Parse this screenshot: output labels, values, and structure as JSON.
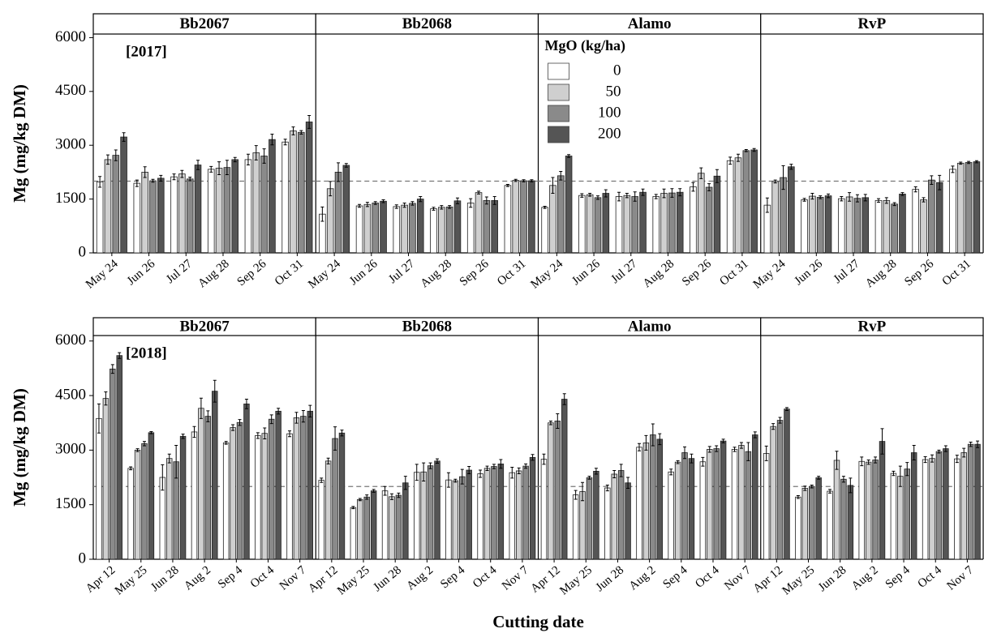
{
  "chart_data": [
    {
      "type": "bar",
      "annotation": "[2017]",
      "ylabel": "Mg (mg/kg DM)",
      "ylim": [
        0,
        6100
      ],
      "yticks": [
        0,
        1500,
        3000,
        4500,
        6000
      ],
      "hline": 2000,
      "categories": [
        "May 24",
        "Jun 26",
        "Jul 27",
        "Aug 28",
        "Sep 26",
        "Oct 31"
      ],
      "colors": [
        "#ffffff",
        "#cfcfcf",
        "#8a8a8a",
        "#555555"
      ],
      "legend": {
        "title": "MgO (kg/ha)",
        "names": [
          "0",
          "50",
          "100",
          "200"
        ]
      },
      "panels": [
        {
          "title": "Bb2067",
          "values": [
            [
              1980,
              1940,
              2120,
              2330,
              2600,
              3090
            ],
            [
              2600,
              2250,
              2200,
              2360,
              2790,
              3400
            ],
            [
              2720,
              2010,
              2060,
              2380,
              2700,
              3360
            ],
            [
              3230,
              2080,
              2450,
              2600,
              3160,
              3650
            ]
          ],
          "errors": [
            [
              150,
              90,
              80,
              80,
              150,
              80
            ],
            [
              130,
              150,
              100,
              180,
              200,
              110
            ],
            [
              150,
              40,
              50,
              200,
              200,
              50
            ],
            [
              120,
              80,
              130,
              60,
              150,
              180
            ]
          ]
        },
        {
          "title": "Bb2068",
          "values": [
            [
              1080,
              1310,
              1290,
              1230,
              1390,
              1880
            ],
            [
              1790,
              1350,
              1330,
              1270,
              1680,
              2020
            ],
            [
              2250,
              1390,
              1380,
              1280,
              1460,
              2010
            ],
            [
              2440,
              1440,
              1500,
              1450,
              1460,
              2010
            ]
          ],
          "errors": [
            [
              200,
              40,
              50,
              40,
              120,
              30
            ],
            [
              200,
              60,
              60,
              50,
              40,
              30
            ],
            [
              260,
              40,
              50,
              40,
              100,
              30
            ],
            [
              50,
              40,
              70,
              80,
              110,
              30
            ]
          ]
        },
        {
          "title": "Alamo",
          "values": [
            [
              1270,
              1600,
              1570,
              1570,
              1840,
              2570
            ],
            [
              1880,
              1620,
              1600,
              1660,
              2220,
              2650
            ],
            [
              2150,
              1540,
              1570,
              1670,
              1830,
              2850
            ],
            [
              2700,
              1660,
              1690,
              1690,
              2140,
              2870
            ]
          ],
          "errors": [
            [
              30,
              50,
              120,
              60,
              120,
              100
            ],
            [
              220,
              40,
              60,
              120,
              150,
              100
            ],
            [
              120,
              50,
              130,
              120,
              100,
              30
            ],
            [
              40,
              100,
              90,
              100,
              180,
              40
            ]
          ]
        },
        {
          "title": "RvP",
          "values": [
            [
              1330,
              1480,
              1510,
              1460,
              1770,
              2330
            ],
            [
              1990,
              1580,
              1560,
              1460,
              1480,
              2500
            ],
            [
              2100,
              1550,
              1520,
              1360,
              2030,
              2520
            ],
            [
              2400,
              1590,
              1540,
              1640,
              1960,
              2540
            ]
          ],
          "errors": [
            [
              200,
              40,
              60,
              50,
              70,
              90
            ],
            [
              40,
              80,
              120,
              80,
              60,
              30
            ],
            [
              330,
              40,
              100,
              40,
              120,
              30
            ],
            [
              70,
              50,
              90,
              40,
              200,
              30
            ]
          ]
        }
      ]
    },
    {
      "type": "bar",
      "annotation": "[2018]",
      "ylabel": "Mg (mg/kg DM)",
      "ylim": [
        0,
        6150
      ],
      "yticks": [
        0,
        1500,
        3000,
        4500,
        6000
      ],
      "hline": 2000,
      "xlabel": "Cutting date",
      "categories": [
        "Apr 12",
        "May 25",
        "Jun 28",
        "Aug 2",
        "Sep 4",
        "Oct 4",
        "Nov 7"
      ],
      "colors": [
        "#ffffff",
        "#cfcfcf",
        "#8a8a8a",
        "#555555"
      ],
      "panels": [
        {
          "title": "Bb2067",
          "values": [
            [
              3870,
              2500,
              2250,
              3500,
              3200,
              3400,
              3450
            ],
            [
              4420,
              3000,
              2770,
              4150,
              3620,
              3460,
              3890
            ],
            [
              5230,
              3180,
              2680,
              3930,
              3760,
              3850,
              3930
            ],
            [
              5600,
              3480,
              3380,
              4620,
              4270,
              4070,
              4070
            ]
          ],
          "errors": [
            [
              400,
              40,
              350,
              150,
              40,
              80,
              80
            ],
            [
              180,
              40,
              120,
              280,
              80,
              150,
              150
            ],
            [
              120,
              60,
              450,
              150,
              80,
              120,
              160
            ],
            [
              80,
              30,
              60,
              300,
              130,
              80,
              160
            ]
          ]
        },
        {
          "title": "Bb2068",
          "values": [
            [
              2170,
              1420,
              1880,
              2390,
              2180,
              2350,
              2380
            ],
            [
              2700,
              1640,
              1720,
              2400,
              2160,
              2500,
              2430
            ],
            [
              3320,
              1710,
              1760,
              2570,
              2270,
              2550,
              2560
            ],
            [
              3470,
              1880,
              2100,
              2700,
              2450,
              2620,
              2800
            ]
          ],
          "errors": [
            [
              60,
              30,
              120,
              220,
              200,
              100,
              150
            ],
            [
              80,
              30,
              80,
              250,
              40,
              60,
              80
            ],
            [
              320,
              60,
              60,
              80,
              200,
              60,
              60
            ],
            [
              80,
              40,
              180,
              60,
              100,
              120,
              80
            ]
          ]
        },
        {
          "title": "Alamo",
          "values": [
            [
              2750,
              1770,
              1960,
              3080,
              2400,
              2680,
              3020
            ],
            [
              3750,
              1860,
              2340,
              3200,
              2670,
              3020,
              3130
            ],
            [
              3800,
              2240,
              2440,
              3420,
              2930,
              3040,
              2960
            ],
            [
              4400,
              2420,
              2100,
              3300,
              2770,
              3250,
              3420
            ]
          ],
          "errors": [
            [
              140,
              120,
              80,
              100,
              80,
              120,
              60
            ],
            [
              50,
              250,
              100,
              200,
              40,
              80,
              80
            ],
            [
              200,
              40,
              170,
              300,
              160,
              80,
              250
            ],
            [
              150,
              80,
              150,
              150,
              120,
              50,
              80
            ]
          ]
        },
        {
          "title": "RvP",
          "values": [
            [
              2910,
              1710,
              1870,
              2690,
              2360,
              2740,
              2760
            ],
            [
              3650,
              1950,
              2720,
              2670,
              2280,
              2770,
              2930
            ],
            [
              3820,
              2000,
              2200,
              2730,
              2480,
              2960,
              3160
            ],
            [
              4130,
              2240,
              2030,
              3240,
              2930,
              3040,
              3160
            ]
          ],
          "errors": [
            [
              200,
              40,
              50,
              120,
              60,
              80,
              100
            ],
            [
              80,
              60,
              250,
              60,
              280,
              100,
              120
            ],
            [
              80,
              40,
              80,
              80,
              180,
              40,
              60
            ],
            [
              40,
              40,
              200,
              350,
              200,
              80,
              90
            ]
          ]
        }
      ]
    }
  ]
}
